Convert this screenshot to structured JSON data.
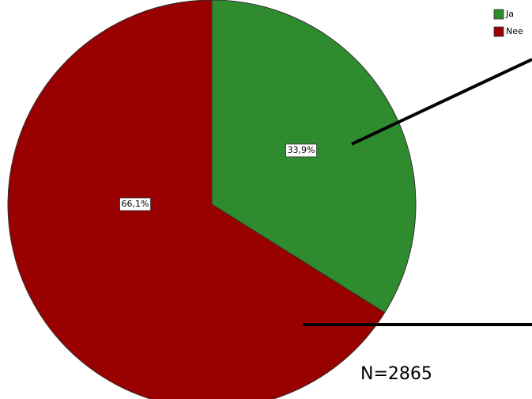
{
  "chart_data": {
    "type": "pie",
    "categories": [
      "Ja",
      "Nee"
    ],
    "values": [
      33.9,
      66.1
    ],
    "value_labels": [
      "33,9%",
      "66,1%"
    ],
    "colors": [
      "#2e8b2e",
      "#990000"
    ],
    "annotation": "N=2865",
    "legend": "top-right"
  }
}
